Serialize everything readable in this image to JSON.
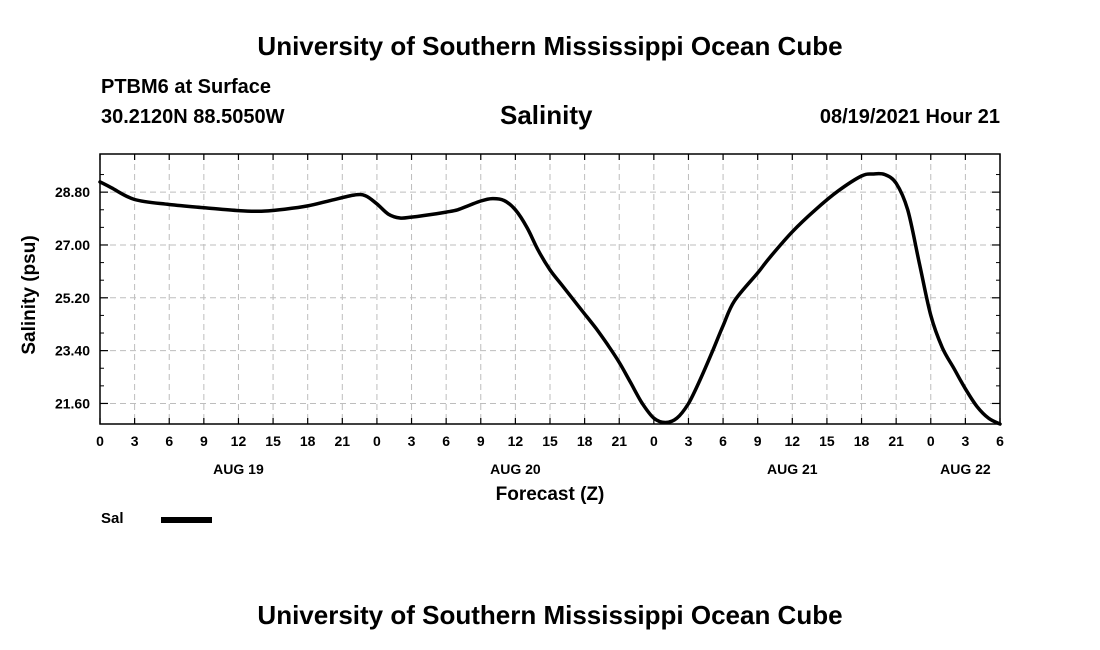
{
  "header": {
    "title_top": "University of Southern Mississippi Ocean Cube",
    "station": "PTBM6 at Surface",
    "coords": "30.2120N  88.5050W",
    "variable": "Salinity",
    "datetime": "08/19/2021 Hour 21"
  },
  "footer": {
    "title_bottom": "University of Southern Mississippi Ocean Cube"
  },
  "legend": {
    "label": "Sal",
    "color": "#000000"
  },
  "chart_data": {
    "type": "line",
    "title": "Salinity",
    "xlabel": "Forecast (Z)",
    "ylabel": "Salinity (psu)",
    "xlim": [
      0,
      78
    ],
    "ylim": [
      20.9,
      30.1
    ],
    "grid": true,
    "x_tick_hours": [
      0,
      3,
      6,
      9,
      12,
      15,
      18,
      21,
      24,
      27,
      30,
      33,
      36,
      39,
      42,
      45,
      48,
      51,
      54,
      57,
      60,
      63,
      66,
      69,
      72,
      75,
      78
    ],
    "x_tick_labels": [
      "0",
      "3",
      "6",
      "9",
      "12",
      "15",
      "18",
      "21",
      "0",
      "3",
      "6",
      "9",
      "12",
      "15",
      "18",
      "21",
      "0",
      "3",
      "6",
      "9",
      "12",
      "15",
      "18",
      "21",
      "0",
      "3",
      "6"
    ],
    "y_ticks": [
      21.6,
      23.4,
      25.2,
      27.0,
      28.8
    ],
    "y_tick_labels": [
      "21.60",
      "23.40",
      "25.20",
      "27.00",
      "28.80"
    ],
    "y_minor_ticks": [
      22.2,
      22.8,
      24.0,
      24.6,
      25.8,
      26.4,
      27.6,
      28.2,
      29.4
    ],
    "date_labels": [
      {
        "hour": 12,
        "label": "AUG 19"
      },
      {
        "hour": 36,
        "label": "AUG 20"
      },
      {
        "hour": 60,
        "label": "AUG 21"
      },
      {
        "hour": 75,
        "label": "AUG 22"
      }
    ],
    "series": [
      {
        "name": "Sal",
        "x": [
          0,
          1,
          3,
          6,
          9,
          12,
          14,
          16,
          18,
          20,
          22,
          23,
          24,
          25,
          26,
          27,
          28,
          30,
          31,
          32,
          33,
          34,
          35,
          36,
          37,
          38,
          39,
          40,
          41,
          42,
          43,
          44,
          45,
          46,
          47,
          48,
          49,
          50,
          51,
          52,
          53,
          54,
          55,
          57,
          58,
          60,
          62,
          64,
          66,
          67,
          68,
          69,
          70,
          71,
          72,
          73,
          74,
          75,
          76,
          77,
          78
        ],
        "values": [
          29.15,
          28.95,
          28.55,
          28.38,
          28.27,
          28.17,
          28.15,
          28.22,
          28.33,
          28.52,
          28.7,
          28.68,
          28.4,
          28.05,
          27.92,
          27.95,
          28.0,
          28.12,
          28.2,
          28.35,
          28.5,
          28.58,
          28.52,
          28.2,
          27.6,
          26.8,
          26.15,
          25.65,
          25.15,
          24.65,
          24.15,
          23.6,
          23.0,
          22.3,
          21.6,
          21.1,
          20.95,
          21.1,
          21.6,
          22.4,
          23.3,
          24.25,
          25.1,
          26.05,
          26.55,
          27.45,
          28.2,
          28.85,
          29.35,
          29.42,
          29.4,
          29.1,
          28.2,
          26.4,
          24.6,
          23.5,
          22.8,
          22.1,
          21.5,
          21.1,
          20.9
        ]
      }
    ]
  }
}
